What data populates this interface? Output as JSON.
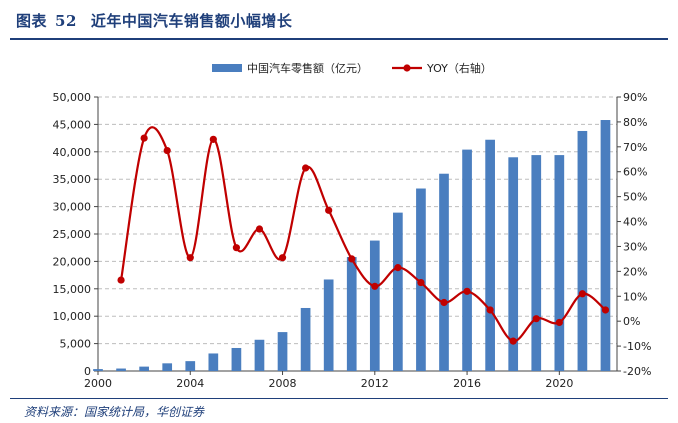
{
  "header": {
    "figure_label": "图表",
    "figure_number": "52",
    "title": "近年中国汽车销售额小幅增长"
  },
  "source": "资料来源：国家统计局，华创证券",
  "chart_data": {
    "type": "bar",
    "title": "",
    "xlabel": "",
    "ylabel": "",
    "x": [
      2000,
      2001,
      2002,
      2003,
      2004,
      2005,
      2006,
      2007,
      2008,
      2009,
      2010,
      2011,
      2012,
      2013,
      2014,
      2015,
      2016,
      2017,
      2018,
      2019,
      2020,
      2021,
      2022
    ],
    "x_ticks": [
      2000,
      2004,
      2008,
      2012,
      2016,
      2020
    ],
    "x_tick_labels": [
      "2000",
      "2004",
      "2008",
      "2012",
      "2016",
      "2020"
    ],
    "xlim": [
      2000,
      2022.5
    ],
    "ylim": [
      0,
      50000
    ],
    "y_ticks": [
      0,
      5000,
      10000,
      15000,
      20000,
      25000,
      30000,
      35000,
      40000,
      45000,
      50000
    ],
    "y_tick_labels": [
      "0",
      "5,000",
      "10,000",
      "15,000",
      "20,000",
      "25,000",
      "30,000",
      "35,000",
      "40,000",
      "45,000",
      "50,000"
    ],
    "y2lim": [
      -20,
      90
    ],
    "y2_ticks": [
      -20,
      -10,
      0,
      10,
      20,
      30,
      40,
      50,
      60,
      70,
      80,
      90
    ],
    "y2_tick_labels": [
      "-20%",
      "-10%",
      "0%",
      "10%",
      "20%",
      "30%",
      "40%",
      "50%",
      "60%",
      "70%",
      "80%",
      "90%"
    ],
    "grid": "horizontal dashed",
    "legend_position": "top-center",
    "series": [
      {
        "name": "中国汽车零售额（亿元）",
        "type": "bar",
        "axis": "left",
        "color": "#4a7ebf",
        "values": [
          350,
          450,
          800,
          1400,
          1800,
          3200,
          4200,
          5700,
          7100,
          11500,
          16700,
          20800,
          23800,
          28900,
          33300,
          36000,
          40400,
          42200,
          39000,
          39400,
          39400,
          43800,
          45800
        ]
      },
      {
        "name": "YOY（右轴）",
        "type": "line",
        "axis": "right",
        "color": "#c00000",
        "x": [
          2001,
          2002,
          2003,
          2004,
          2005,
          2006,
          2007,
          2008,
          2009,
          2010,
          2011,
          2012,
          2013,
          2014,
          2015,
          2016,
          2017,
          2018,
          2019,
          2020,
          2021,
          2022
        ],
        "values": [
          16.5,
          73.5,
          68.5,
          25.5,
          73,
          29.5,
          37,
          25.5,
          61.5,
          44.5,
          25,
          14,
          21.5,
          15.5,
          7.5,
          12,
          4.5,
          -8,
          1,
          -0.5,
          11,
          4.5
        ]
      }
    ]
  }
}
